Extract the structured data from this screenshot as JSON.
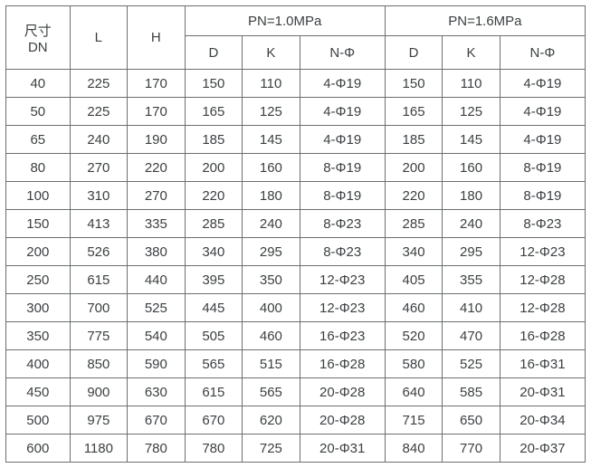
{
  "table": {
    "type": "table",
    "border_color": "#6b6f71",
    "text_color": "#3c4042",
    "background_color": "#ffffff",
    "font_family": "Arial",
    "font_size_pt": 11,
    "header": {
      "dn_line1": "尺寸",
      "dn_line2": "DN",
      "L": "L",
      "H": "H",
      "group1": "PN=1.0MPa",
      "group2": "PN=1.6MPa",
      "D": "D",
      "K": "K",
      "NPhi": "N-Φ"
    },
    "rows": [
      {
        "dn": "40",
        "L": "225",
        "H": "170",
        "D1": "150",
        "K1": "110",
        "NP1": "4-Φ19",
        "D2": "150",
        "K2": "110",
        "NP2": "4-Φ19"
      },
      {
        "dn": "50",
        "L": "225",
        "H": "170",
        "D1": "165",
        "K1": "125",
        "NP1": "4-Φ19",
        "D2": "165",
        "K2": "125",
        "NP2": "4-Φ19"
      },
      {
        "dn": "65",
        "L": "240",
        "H": "190",
        "D1": "185",
        "K1": "145",
        "NP1": "4-Φ19",
        "D2": "185",
        "K2": "145",
        "NP2": "4-Φ19"
      },
      {
        "dn": "80",
        "L": "270",
        "H": "220",
        "D1": "200",
        "K1": "160",
        "NP1": "8-Φ19",
        "D2": "200",
        "K2": "160",
        "NP2": "8-Φ19"
      },
      {
        "dn": "100",
        "L": "310",
        "H": "270",
        "D1": "220",
        "K1": "180",
        "NP1": "8-Φ19",
        "D2": "220",
        "K2": "180",
        "NP2": "8-Φ19"
      },
      {
        "dn": "150",
        "L": "413",
        "H": "335",
        "D1": "285",
        "K1": "240",
        "NP1": "8-Φ23",
        "D2": "285",
        "K2": "240",
        "NP2": "8-Φ23"
      },
      {
        "dn": "200",
        "L": "526",
        "H": "380",
        "D1": "340",
        "K1": "295",
        "NP1": "8-Φ23",
        "D2": "340",
        "K2": "295",
        "NP2": "12-Φ23"
      },
      {
        "dn": "250",
        "L": "615",
        "H": "440",
        "D1": "395",
        "K1": "350",
        "NP1": "12-Φ23",
        "D2": "405",
        "K2": "355",
        "NP2": "12-Φ28"
      },
      {
        "dn": "300",
        "L": "700",
        "H": "525",
        "D1": "445",
        "K1": "400",
        "NP1": "12-Φ23",
        "D2": "460",
        "K2": "410",
        "NP2": "12-Φ28"
      },
      {
        "dn": "350",
        "L": "775",
        "H": "540",
        "D1": "505",
        "K1": "460",
        "NP1": "16-Φ23",
        "D2": "520",
        "K2": "470",
        "NP2": "16-Φ28"
      },
      {
        "dn": "400",
        "L": "850",
        "H": "590",
        "D1": "565",
        "K1": "515",
        "NP1": "16-Φ28",
        "D2": "580",
        "K2": "525",
        "NP2": "16-Φ31"
      },
      {
        "dn": "450",
        "L": "900",
        "H": "630",
        "D1": "615",
        "K1": "565",
        "NP1": "20-Φ28",
        "D2": "640",
        "K2": "585",
        "NP2": "20-Φ31"
      },
      {
        "dn": "500",
        "L": "975",
        "H": "670",
        "D1": "670",
        "K1": "620",
        "NP1": "20-Φ28",
        "D2": "715",
        "K2": "650",
        "NP2": "20-Φ34"
      },
      {
        "dn": "600",
        "L": "1180",
        "H": "780",
        "D1": "780",
        "K1": "725",
        "NP1": "20-Φ31",
        "D2": "840",
        "K2": "770",
        "NP2": "20-Φ37"
      }
    ]
  }
}
